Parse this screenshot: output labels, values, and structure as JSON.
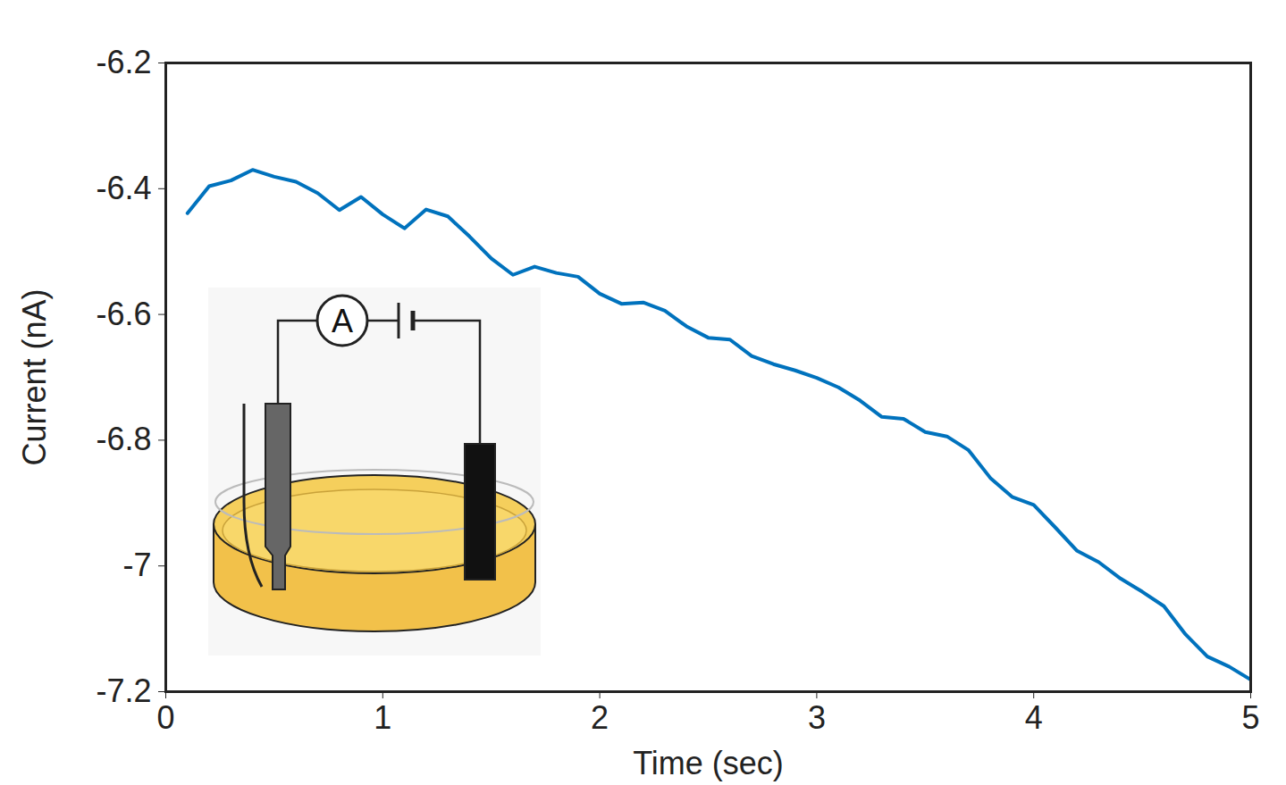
{
  "chart_data": {
    "type": "line",
    "xlabel": "Time (sec)",
    "ylabel": "Current (nA)",
    "x": [
      0.1,
      0.2,
      0.3,
      0.4,
      0.5,
      0.6,
      0.7,
      0.8,
      0.9,
      1.0,
      1.1,
      1.2,
      1.3,
      1.4,
      1.5,
      1.6,
      1.7,
      1.8,
      1.9,
      2.0,
      2.1,
      2.2,
      2.3,
      2.4,
      2.5,
      2.6,
      2.7,
      2.8,
      2.9,
      3.0,
      3.1,
      3.2,
      3.3,
      3.4,
      3.5,
      3.6,
      3.7,
      3.8,
      3.9,
      4.0,
      4.1,
      4.2,
      4.3,
      4.4,
      4.5,
      4.6,
      4.7,
      4.8,
      4.9,
      5.0
    ],
    "values": [
      -6.439,
      -6.396,
      -6.387,
      -6.37,
      -6.381,
      -6.389,
      -6.407,
      -6.434,
      -6.413,
      -6.441,
      -6.463,
      -6.433,
      -6.444,
      -6.476,
      -6.511,
      -6.537,
      -6.524,
      -6.534,
      -6.54,
      -6.567,
      -6.583,
      -6.581,
      -6.594,
      -6.619,
      -6.637,
      -6.64,
      -6.666,
      -6.679,
      -6.689,
      -6.701,
      -6.716,
      -6.737,
      -6.763,
      -6.766,
      -6.787,
      -6.794,
      -6.816,
      -6.86,
      -6.89,
      -6.903,
      -6.939,
      -6.976,
      -6.994,
      -7.02,
      -7.041,
      -7.064,
      -7.109,
      -7.144,
      -7.16,
      -7.181
    ],
    "color": "#0072bd",
    "xlim": [
      0,
      5
    ],
    "xticks": [
      0,
      1,
      2,
      3,
      4,
      5
    ],
    "ylim": [
      -7.2,
      -6.2
    ],
    "yticks": [
      -7.2,
      -7,
      -6.8,
      -6.6,
      -6.4,
      -6.2
    ],
    "grid": false,
    "annotations": [
      "A"
    ]
  }
}
